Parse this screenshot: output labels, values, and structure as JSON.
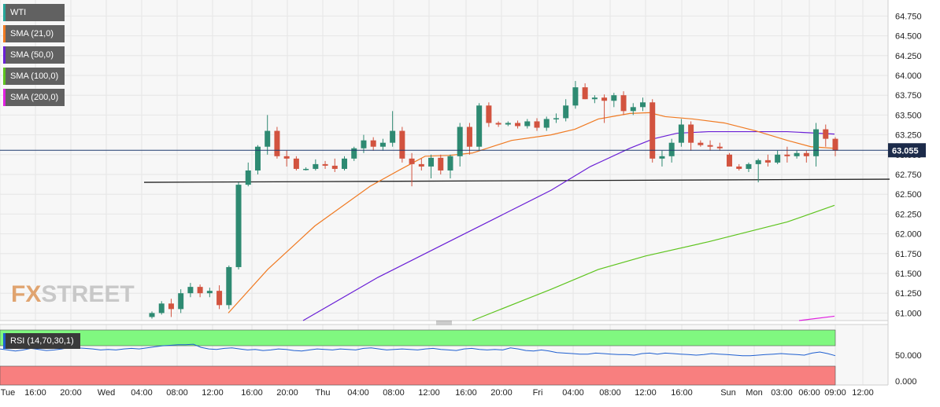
{
  "brand": {
    "fx": "FX",
    "street": "STREET"
  },
  "legend": [
    {
      "label": "WTI",
      "color": "#26a69a"
    },
    {
      "label": "SMA (21,0)",
      "color": "#f07a22"
    },
    {
      "label": "SMA (50,0)",
      "color": "#6a1fd6"
    },
    {
      "label": "SMA (100,0)",
      "color": "#5ec41e"
    },
    {
      "label": "SMA (200,0)",
      "color": "#e020e0"
    }
  ],
  "rsi": {
    "label": "RSI (14,70,30,1)",
    "color": "#1f5fd0"
  },
  "colors": {
    "up": "#2e8a72",
    "down": "#d2533f",
    "grid": "#e6e6e6",
    "price_line": "#1f3a6e",
    "rsi_over": "#80f880",
    "rsi_under": "#f87f7f"
  },
  "chart_data": {
    "type": "candlestick",
    "symbol": "WTI",
    "last_price": "63.055",
    "ylim": [
      60.9,
      64.9
    ],
    "y_ticks": [
      "64.750",
      "64.500",
      "64.250",
      "64.000",
      "63.750",
      "63.500",
      "63.250",
      "63.000",
      "62.750",
      "62.500",
      "62.250",
      "62.000",
      "61.750",
      "61.500",
      "61.250",
      "61.000"
    ],
    "x_ticks": [
      "Tue",
      "16:00",
      "20:00",
      "Wed",
      "04:00",
      "08:00",
      "12:00",
      "16:00",
      "20:00",
      "Thu",
      "04:00",
      "08:00",
      "12:00",
      "16:00",
      "20:00",
      "Fri",
      "04:00",
      "08:00",
      "12:00",
      "16:00",
      "Sun",
      "Mon",
      "03:00",
      "06:00",
      "09:00",
      "12:00"
    ],
    "candles": [
      [
        60.95,
        61.02,
        60.93,
        61.0
      ],
      [
        61.0,
        61.15,
        60.98,
        61.12
      ],
      [
        61.12,
        61.18,
        60.95,
        61.05
      ],
      [
        61.05,
        61.3,
        61.0,
        61.25
      ],
      [
        61.25,
        61.38,
        61.2,
        61.33
      ],
      [
        61.33,
        61.36,
        61.2,
        61.25
      ],
      [
        61.25,
        61.32,
        61.2,
        61.28
      ],
      [
        61.28,
        61.35,
        61.05,
        61.1
      ],
      [
        61.1,
        61.6,
        61.05,
        61.58
      ],
      [
        61.58,
        62.65,
        61.55,
        62.62
      ],
      [
        62.62,
        62.9,
        62.6,
        62.8
      ],
      [
        62.8,
        63.12,
        62.75,
        63.1
      ],
      [
        63.1,
        63.5,
        63.0,
        63.3
      ],
      [
        63.3,
        63.35,
        62.95,
        62.98
      ],
      [
        62.98,
        63.05,
        62.85,
        62.95
      ],
      [
        62.95,
        62.98,
        62.8,
        62.82
      ],
      [
        62.82,
        62.84,
        62.8,
        62.82
      ],
      [
        62.82,
        62.94,
        62.8,
        62.88
      ],
      [
        62.88,
        62.92,
        62.82,
        62.86
      ],
      [
        62.86,
        62.95,
        62.78,
        62.82
      ],
      [
        62.82,
        62.98,
        62.8,
        62.95
      ],
      [
        62.95,
        63.1,
        62.92,
        63.08
      ],
      [
        63.08,
        63.25,
        63.02,
        63.18
      ],
      [
        63.18,
        63.22,
        63.05,
        63.1
      ],
      [
        63.1,
        63.2,
        63.05,
        63.15
      ],
      [
        63.15,
        63.55,
        63.1,
        63.3
      ],
      [
        63.3,
        63.35,
        62.9,
        62.95
      ],
      [
        62.95,
        63.02,
        62.6,
        62.88
      ],
      [
        62.88,
        62.95,
        62.8,
        62.85
      ],
      [
        62.85,
        63.0,
        62.7,
        62.96
      ],
      [
        62.96,
        63.0,
        62.75,
        62.8
      ],
      [
        62.8,
        63.0,
        62.7,
        62.98
      ],
      [
        62.98,
        63.4,
        62.85,
        63.35
      ],
      [
        63.35,
        63.4,
        63.0,
        63.1
      ],
      [
        63.1,
        63.65,
        63.05,
        63.62
      ],
      [
        63.62,
        63.66,
        63.35,
        63.4
      ],
      [
        63.4,
        63.42,
        63.35,
        63.38
      ],
      [
        63.38,
        63.42,
        63.36,
        63.4
      ],
      [
        63.4,
        63.43,
        63.33,
        63.36
      ],
      [
        63.36,
        63.45,
        63.33,
        63.42
      ],
      [
        63.42,
        63.46,
        63.3,
        63.34
      ],
      [
        63.34,
        63.48,
        63.3,
        63.45
      ],
      [
        63.45,
        63.52,
        63.4,
        63.46
      ],
      [
        63.46,
        63.7,
        63.42,
        63.62
      ],
      [
        63.62,
        63.93,
        63.58,
        63.85
      ],
      [
        63.85,
        63.9,
        63.7,
        63.7
      ],
      [
        63.7,
        63.75,
        63.65,
        63.72
      ],
      [
        63.72,
        63.76,
        63.4,
        63.68
      ],
      [
        63.68,
        63.78,
        63.6,
        63.75
      ],
      [
        63.75,
        63.8,
        63.5,
        63.55
      ],
      [
        63.55,
        63.65,
        63.5,
        63.6
      ],
      [
        63.6,
        63.72,
        63.55,
        63.66
      ],
      [
        63.66,
        63.7,
        62.9,
        62.95
      ],
      [
        62.95,
        63.05,
        62.85,
        62.98
      ],
      [
        62.98,
        63.2,
        62.9,
        63.15
      ],
      [
        63.15,
        63.45,
        63.1,
        63.38
      ],
      [
        63.38,
        63.42,
        63.05,
        63.15
      ],
      [
        63.15,
        63.18,
        63.1,
        63.12
      ],
      [
        63.12,
        63.18,
        63.05,
        63.1
      ],
      [
        63.1,
        63.15,
        63.05,
        63.08
      ],
      [
        63.0,
        63.02,
        62.85,
        62.85
      ],
      [
        62.85,
        62.88,
        62.8,
        62.82
      ],
      [
        62.82,
        62.9,
        62.78,
        62.88
      ],
      [
        62.88,
        62.95,
        62.65,
        62.93
      ],
      [
        62.93,
        63.0,
        62.85,
        62.9
      ],
      [
        62.9,
        63.05,
        62.88,
        63.0
      ],
      [
        63.0,
        63.1,
        62.9,
        62.98
      ],
      [
        62.98,
        63.05,
        62.95,
        63.02
      ],
      [
        63.02,
        63.05,
        62.9,
        62.98
      ],
      [
        62.98,
        63.4,
        62.85,
        63.32
      ],
      [
        63.32,
        63.38,
        63.1,
        63.2
      ],
      [
        63.2,
        63.22,
        62.98,
        63.05
      ]
    ],
    "sma21": [
      [
        290,
        61.0
      ],
      [
        340,
        61.55
      ],
      [
        400,
        62.1
      ],
      [
        470,
        62.6
      ],
      [
        510,
        62.82
      ],
      [
        540,
        62.98
      ],
      [
        570,
        62.99
      ],
      [
        600,
        63.02
      ],
      [
        650,
        63.18
      ],
      [
        700,
        63.25
      ],
      [
        730,
        63.32
      ],
      [
        760,
        63.45
      ],
      [
        800,
        63.52
      ],
      [
        825,
        63.53
      ],
      [
        845,
        63.48
      ],
      [
        880,
        63.45
      ],
      [
        920,
        63.4
      ],
      [
        960,
        63.3
      ],
      [
        1000,
        63.18
      ],
      [
        1030,
        63.1
      ],
      [
        1060,
        63.08
      ]
    ],
    "sma50": [
      [
        385,
        60.9
      ],
      [
        480,
        61.45
      ],
      [
        560,
        61.85
      ],
      [
        640,
        62.25
      ],
      [
        700,
        62.55
      ],
      [
        750,
        62.85
      ],
      [
        800,
        63.08
      ],
      [
        830,
        63.2
      ],
      [
        860,
        63.27
      ],
      [
        900,
        63.29
      ],
      [
        1000,
        63.29
      ],
      [
        1060,
        63.26
      ]
    ],
    "sma100": [
      [
        600,
        60.9
      ],
      [
        700,
        61.3
      ],
      [
        760,
        61.55
      ],
      [
        820,
        61.72
      ],
      [
        900,
        61.9
      ],
      [
        1000,
        62.15
      ],
      [
        1060,
        62.36
      ]
    ],
    "sma200": [
      [
        1015,
        60.9
      ],
      [
        1060,
        60.96
      ]
    ],
    "trendline": [
      [
        183,
        62.65
      ],
      [
        1130,
        62.69
      ]
    ],
    "rsi_ticks": [
      "50.000",
      "0.000"
    ],
    "rsi_values": [
      62,
      60,
      58,
      60,
      63,
      61,
      59,
      60,
      62,
      65,
      64,
      63,
      62,
      60,
      61,
      60,
      62,
      63,
      62,
      64,
      66,
      68,
      69,
      70,
      70,
      71,
      65,
      62,
      61,
      63,
      64,
      62,
      60,
      61,
      59,
      60,
      62,
      61,
      59,
      58,
      60,
      62,
      61,
      60,
      62,
      61,
      60,
      63,
      64,
      62,
      60,
      61,
      62,
      61,
      60,
      62,
      63,
      61,
      60,
      59,
      62,
      63,
      61,
      60,
      61,
      60,
      64,
      62,
      59,
      58,
      60,
      58,
      55,
      54,
      53,
      52,
      52,
      54,
      53,
      52,
      51,
      51,
      50,
      53,
      54,
      52,
      54,
      53,
      52,
      51,
      50,
      51,
      53,
      52,
      51,
      50,
      49,
      49,
      50,
      51,
      52,
      53,
      52,
      51,
      50,
      54,
      56,
      53,
      49
    ]
  }
}
